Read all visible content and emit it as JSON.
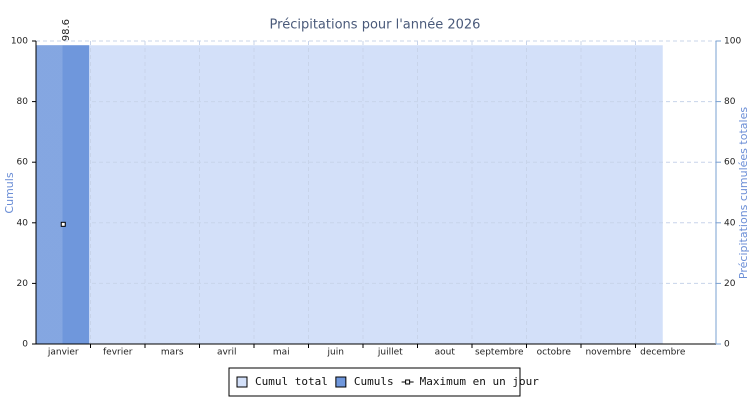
{
  "chart_data": {
    "type": "bar",
    "title": "Précipitations pour l'année 2026",
    "ylabel": "Cumuls",
    "y2label": "Précipitations cumulées totales",
    "categories": [
      "janvier",
      "fevrier",
      "mars",
      "avril",
      "mai",
      "juin",
      "juillet",
      "aout",
      "septembre",
      "octobre",
      "novembre",
      "decembre"
    ],
    "series": [
      {
        "name": "Cumul total",
        "kind": "area",
        "axis": "y2",
        "color": "#d3e0f9",
        "values": [
          98.6,
          98.6,
          98.6,
          98.6,
          98.6,
          98.6,
          98.6,
          98.6,
          98.6,
          98.6,
          98.6,
          98.6
        ]
      },
      {
        "name": "Cumuls",
        "kind": "bar",
        "color": "#6f97dc",
        "values": [
          98.6,
          0,
          0,
          0,
          0,
          0,
          0,
          0,
          0,
          0,
          0,
          0
        ]
      },
      {
        "name": "Maximum en un jour",
        "kind": "point",
        "color": "#000000",
        "values": [
          39.5,
          null,
          null,
          null,
          null,
          null,
          null,
          null,
          null,
          null,
          null,
          null
        ]
      }
    ],
    "ylim": [
      0,
      100
    ],
    "yticks": [
      0,
      20,
      40,
      60,
      80,
      100
    ],
    "y2lim": [
      0,
      100
    ],
    "y2ticks": [
      0,
      20,
      40,
      60,
      80,
      100
    ],
    "grid": true
  }
}
